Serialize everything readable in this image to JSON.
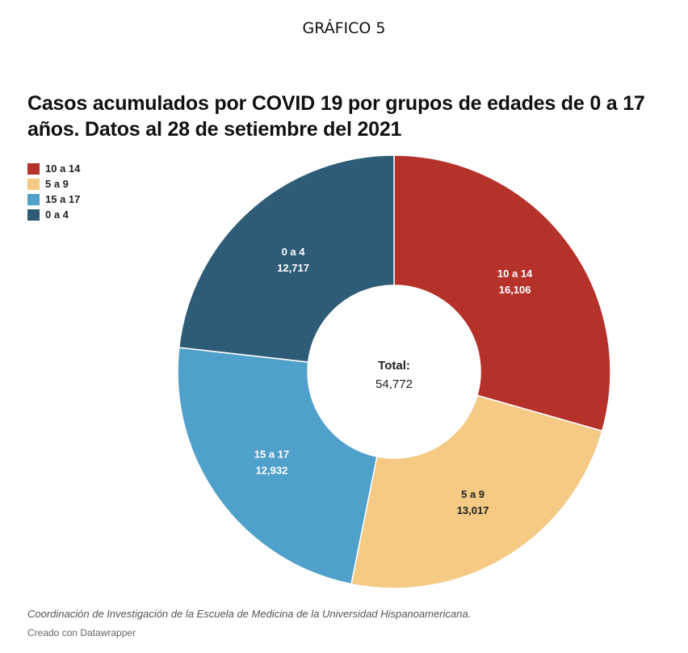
{
  "supertitle": "GRÁFICO 5",
  "chart_data": {
    "type": "pie",
    "subtype": "donut",
    "title": "Casos acumulados por COVID 19 por grupos de edades de 0 a 17 años. Datos al 28 de setiembre del 2021",
    "legend_position": "top-left",
    "slices": [
      {
        "label": "10 a 14",
        "value": 16106,
        "value_text": "16,106",
        "color": "#b5322b"
      },
      {
        "label": "5 a 9",
        "value": 13017,
        "value_text": "13,017",
        "color": "#f4ca84"
      },
      {
        "label": "15 a 17",
        "value": 12932,
        "value_text": "12,932",
        "color": "#4fa0ca"
      },
      {
        "label": "0 a 4",
        "value": 12717,
        "value_text": "12,717",
        "color": "#2e5c76"
      }
    ],
    "center": {
      "label": "Total:",
      "value": 54772,
      "value_text": "54,772"
    }
  },
  "source_note": "Coordinación de Investigación de la Escuela de Medicina de la Universidad Hispanoamericana.",
  "credit": "Creado con Datawrapper"
}
